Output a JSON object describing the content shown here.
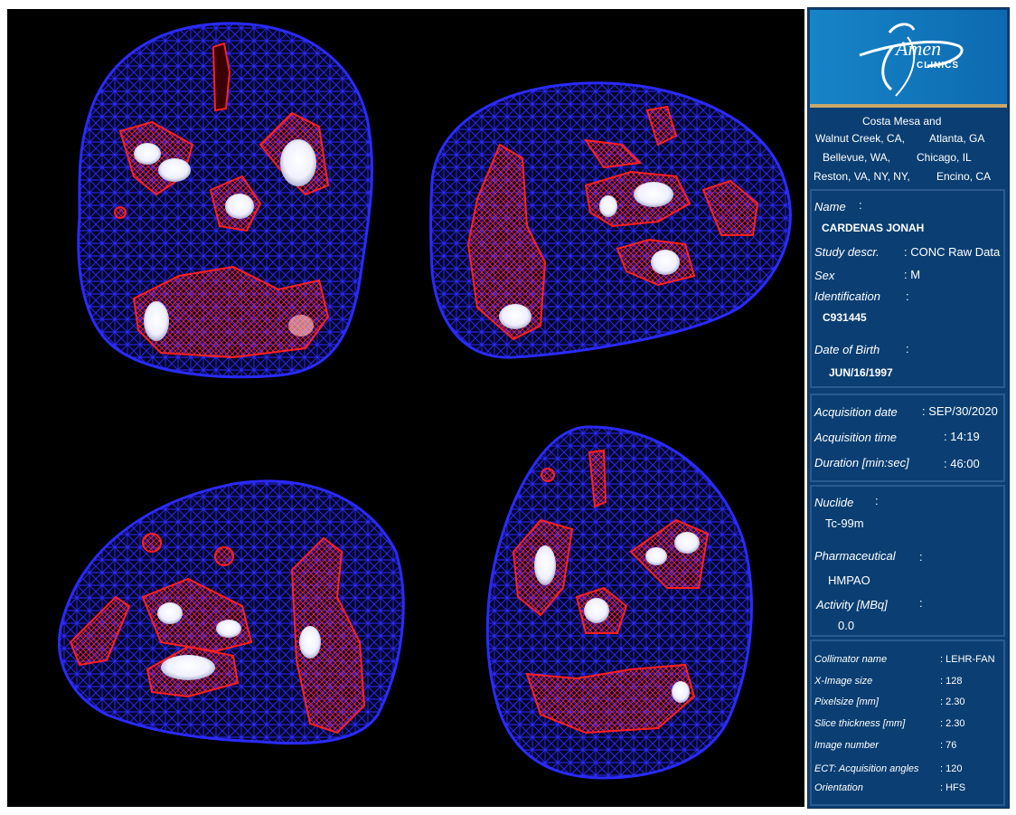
{
  "logo": {
    "brand_word": "Amen",
    "brand_sub": "CLINICS"
  },
  "locations": [
    "Costa Mesa and",
    "Walnut Creek, CA,",
    "Atlanta, GA",
    "Bellevue, WA,",
    "Chicago, IL",
    "Reston, VA, NY, NY,",
    "Encino, CA"
  ],
  "patient": {
    "name_label": "Name",
    "name_value": "CARDENAS  JONAH",
    "study_label": "Study descr.",
    "study_value": ": CONC Raw Data",
    "sex_label": "Sex",
    "sex_value": ": M",
    "id_label": "Identification",
    "id_value": "C931445",
    "dob_label": "Date of Birth",
    "dob_value": "JUN/16/1997",
    "colon": ":"
  },
  "acquisition": {
    "date_label": "Acquisition date",
    "date_value": ": SEP/30/2020",
    "time_label": "Acquisition time",
    "time_value": ": 14:19",
    "duration_label": "Duration [min:sec]",
    "duration_value": ": 46:00"
  },
  "nuclide": {
    "nuclide_label": "Nuclide",
    "nuclide_value": "Tc-99m",
    "pharma_label": "Pharmaceutical",
    "pharma_value": "HMPAO",
    "activity_label": "Activity [MBq]",
    "activity_value": "0.0",
    "colon": ":"
  },
  "technical": [
    {
      "label": "Collimator name",
      "value": ": LEHR-FAN"
    },
    {
      "label": "X-Image size",
      "value": ": 128"
    },
    {
      "label": "Pixelsize [mm]",
      "value": ": 2.30"
    },
    {
      "label": "Slice thickness [mm]",
      "value": ": 2.30"
    },
    {
      "label": "Image number",
      "value": ":  76"
    },
    {
      "label": "ECT: Acquisition angles",
      "value": ": 120"
    },
    {
      "label": "Orientation",
      "value": ": HFS"
    }
  ],
  "colors": {
    "mesh_outer": "#1a1aff",
    "mesh_hot": "#e01010",
    "peak": "#ffffff",
    "panel": "#0b3f73"
  }
}
